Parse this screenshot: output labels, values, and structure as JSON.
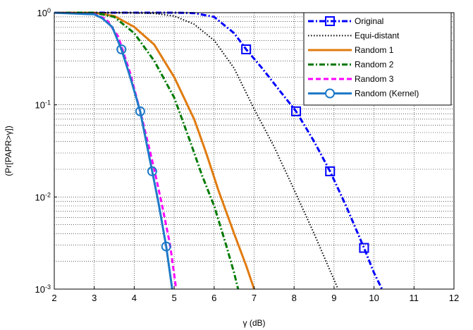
{
  "chart_data": {
    "type": "line",
    "xscale": "linear",
    "yscale": "log",
    "xlabel": "γ (dB)",
    "ylabel": "(Pr[PAPR>γ])",
    "xlim": [
      2,
      12
    ],
    "ylim": [
      0.001,
      1
    ],
    "xticks": [
      2,
      3,
      4,
      5,
      6,
      7,
      8,
      9,
      10,
      11,
      12
    ],
    "xtick_labels": [
      "2",
      "3",
      "4",
      "5",
      "6",
      "7",
      "8",
      "9",
      "10",
      "11",
      "12"
    ],
    "ytick_labels": [
      {
        "base": "10",
        "exp": "0"
      },
      {
        "base": "10",
        "exp": "-1"
      },
      {
        "base": "10",
        "exp": "-2"
      },
      {
        "base": "10",
        "exp": "-3"
      }
    ],
    "grid": true,
    "legend_position": "top-right",
    "series": [
      {
        "name": "Original",
        "color": "#0000ff",
        "dash": "dashdot",
        "marker": "square",
        "marker_x": [
          6.8,
          8.05,
          8.9,
          9.75
        ],
        "x": [
          2,
          5,
          5.5,
          6,
          6.5,
          6.8,
          7.2,
          7.6,
          8.05,
          8.5,
          8.9,
          9.3,
          9.75,
          10.0,
          10.2
        ],
        "y": [
          1,
          1,
          0.99,
          0.9,
          0.6,
          0.4,
          0.25,
          0.15,
          0.085,
          0.04,
          0.019,
          0.008,
          0.0028,
          0.0015,
          0.001
        ]
      },
      {
        "name": "Equi-distant",
        "color": "#000000",
        "dash": "dotted",
        "marker": "none",
        "x": [
          2,
          3.8,
          4.5,
          5.0,
          5.5,
          6.0,
          6.5,
          7.0,
          7.5,
          8.0,
          8.5,
          8.8,
          9.1
        ],
        "y": [
          1,
          1,
          0.98,
          0.92,
          0.75,
          0.5,
          0.25,
          0.09,
          0.035,
          0.012,
          0.004,
          0.002,
          0.001
        ]
      },
      {
        "name": "Random 1",
        "color": "#e07b10",
        "dash": "solid",
        "marker": "none",
        "x": [
          2,
          3.0,
          3.5,
          4.0,
          4.5,
          5.0,
          5.5,
          5.8,
          6.1,
          6.5,
          6.8,
          7.0
        ],
        "y": [
          1,
          1,
          0.92,
          0.7,
          0.45,
          0.2,
          0.07,
          0.03,
          0.012,
          0.004,
          0.0018,
          0.001
        ]
      },
      {
        "name": "Random 2",
        "color": "#007a00",
        "dash": "dashdot",
        "marker": "none",
        "x": [
          2,
          3.0,
          3.5,
          4.0,
          4.5,
          5.0,
          5.4,
          5.7,
          6.0,
          6.3,
          6.5,
          6.6
        ],
        "y": [
          1,
          1,
          0.9,
          0.6,
          0.3,
          0.12,
          0.04,
          0.017,
          0.008,
          0.003,
          0.0015,
          0.001
        ]
      },
      {
        "name": "Random 3",
        "color": "#ff00ff",
        "dash": "dashed",
        "marker": "none",
        "x": [
          2,
          3.0,
          3.3,
          3.6,
          3.9,
          4.2,
          4.5,
          4.7,
          4.9,
          5.05
        ],
        "y": [
          1,
          0.97,
          0.85,
          0.55,
          0.22,
          0.07,
          0.02,
          0.008,
          0.003,
          0.001
        ]
      },
      {
        "name": "Random  (Kernel)",
        "color": "#1e7ac8",
        "dash": "solid",
        "marker": "circle",
        "marker_x": [
          3.68,
          4.15,
          4.45,
          4.8
        ],
        "x": [
          2,
          3.0,
          3.2,
          3.45,
          3.68,
          3.9,
          4.15,
          4.3,
          4.45,
          4.6,
          4.8,
          4.95
        ],
        "y": [
          1,
          0.96,
          0.87,
          0.7,
          0.4,
          0.2,
          0.085,
          0.04,
          0.019,
          0.009,
          0.0029,
          0.001
        ]
      }
    ]
  }
}
